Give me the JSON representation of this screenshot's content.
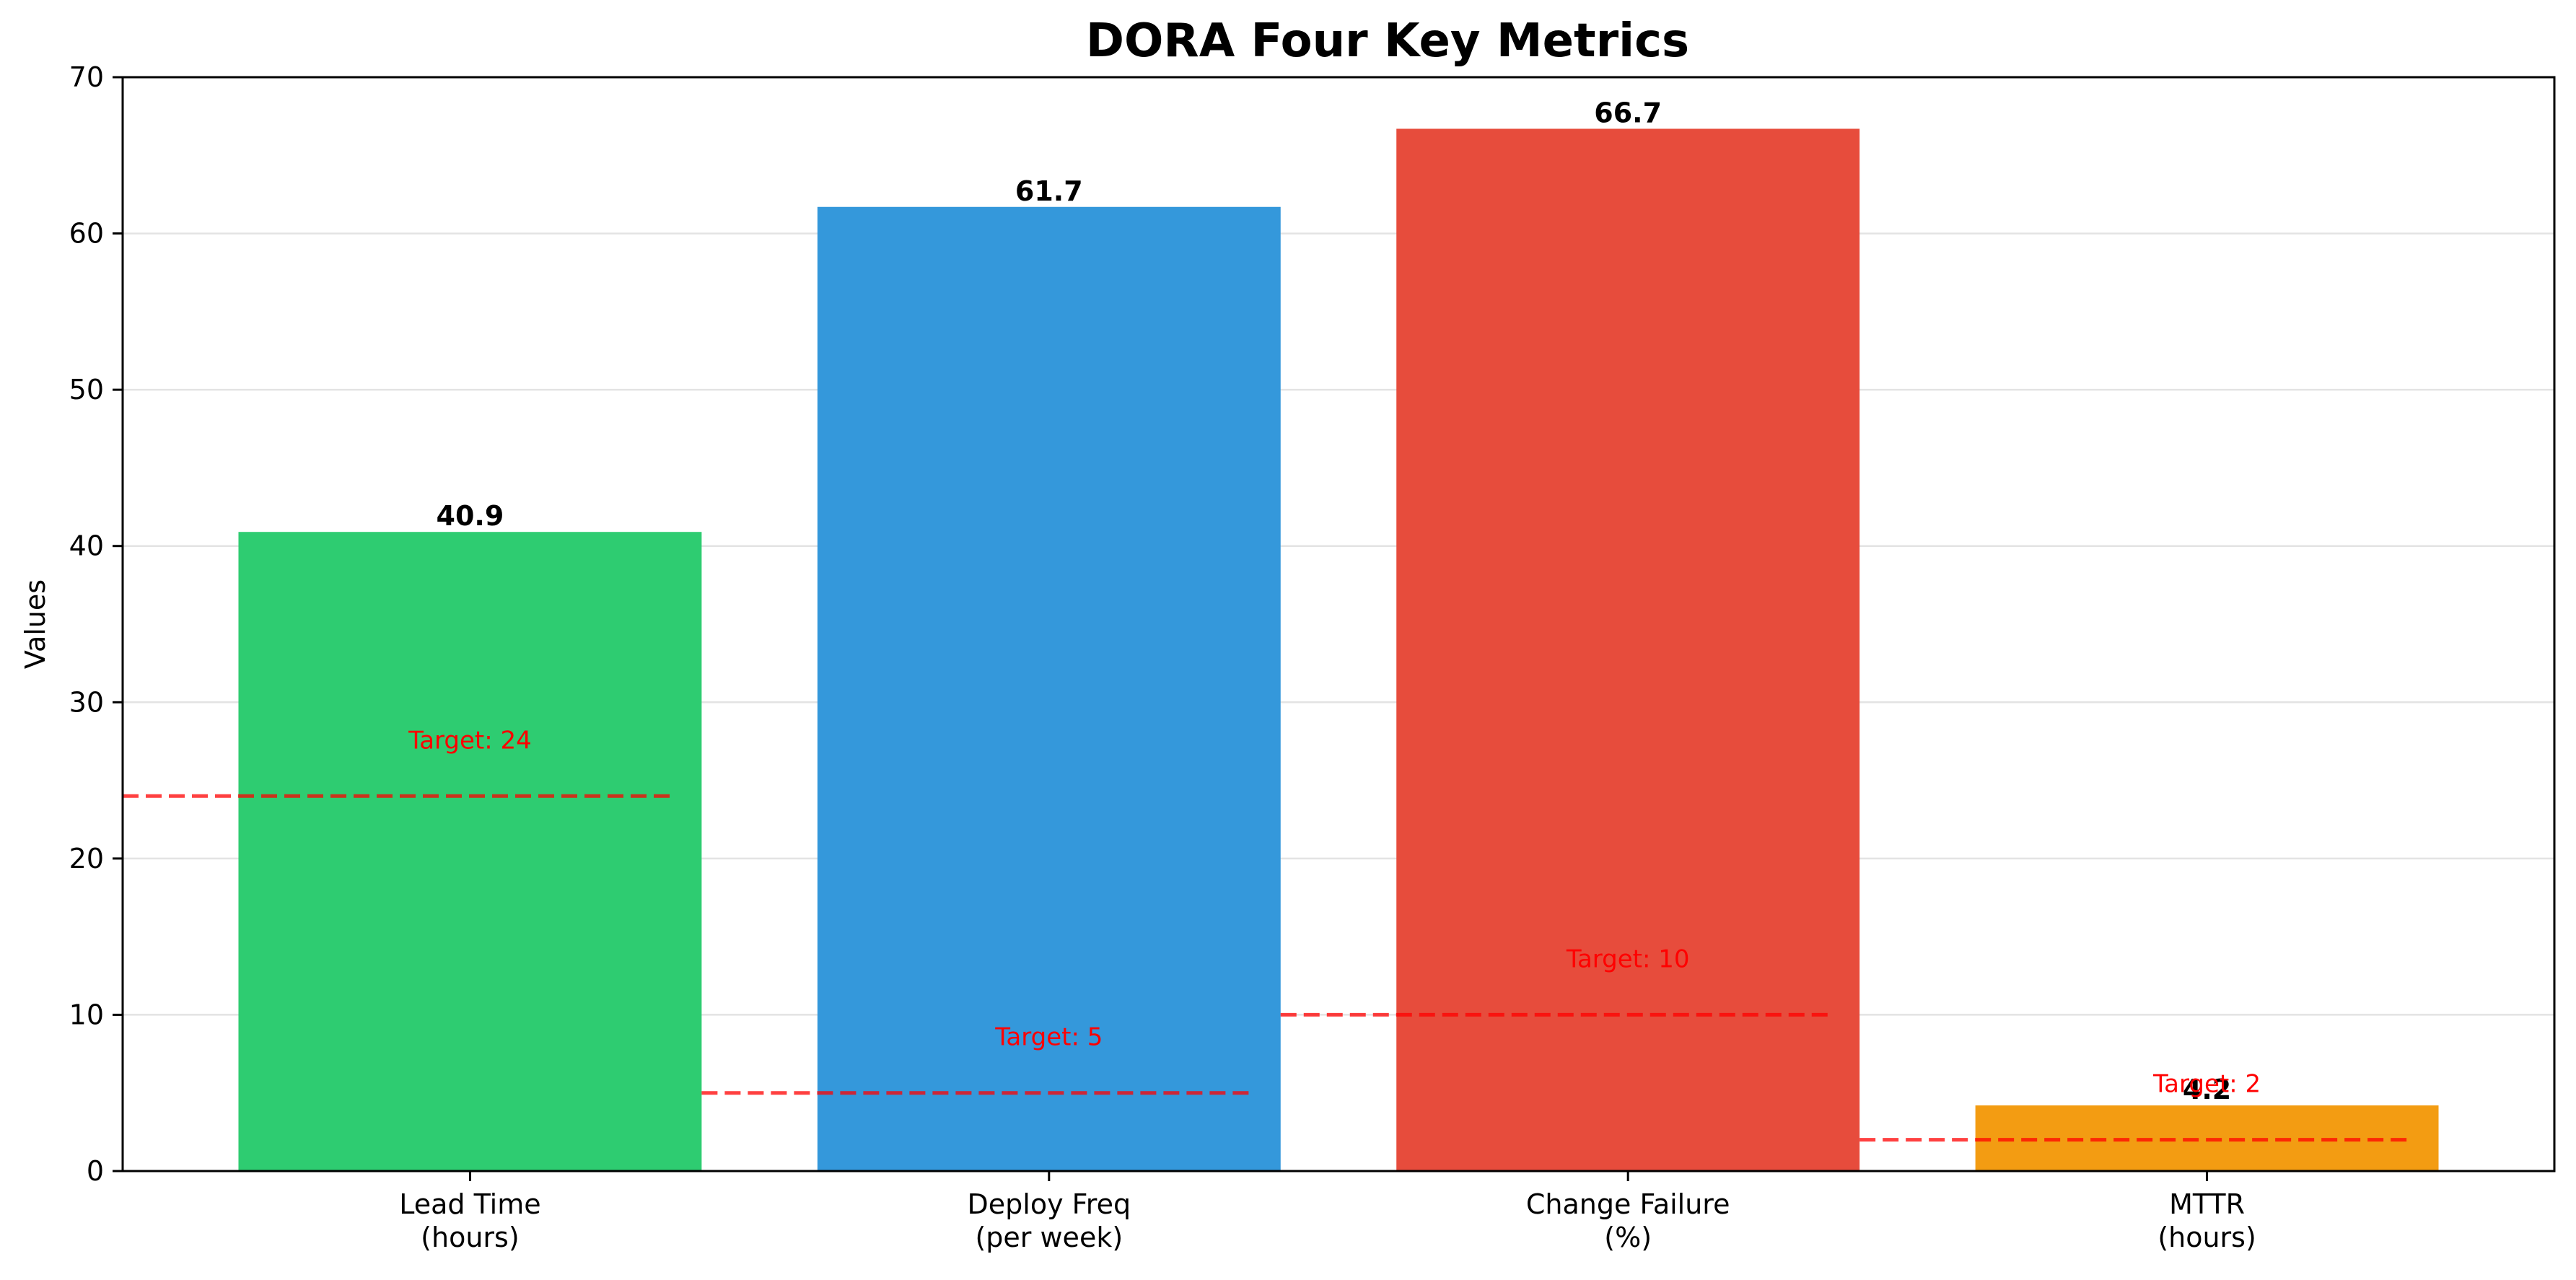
{
  "chart_data": {
    "type": "bar",
    "title": "DORA Four Key Metrics",
    "ylabel": "Values",
    "xlabel": "",
    "ylim": [
      0,
      70
    ],
    "yticks": [
      0,
      10,
      20,
      30,
      40,
      50,
      60,
      70
    ],
    "grid": "horizontal",
    "categories": [
      [
        "Lead Time",
        "(hours)"
      ],
      [
        "Deploy Freq",
        "(per week)"
      ],
      [
        "Change Failure",
        "(%)"
      ],
      [
        "MTTR",
        "(hours)"
      ]
    ],
    "values": [
      40.9,
      61.7,
      66.7,
      4.2
    ],
    "value_labels": [
      "40.9",
      "61.7",
      "66.7",
      "4.2"
    ],
    "colors": [
      "#2ecc71",
      "#3498db",
      "#e74c3c",
      "#f39c12"
    ],
    "targets": [
      {
        "value": 24,
        "label": "Target: 24"
      },
      {
        "value": 5,
        "label": "Target: 5"
      },
      {
        "value": 10,
        "label": "Target: 10"
      },
      {
        "value": 2,
        "label": "Target: 2"
      }
    ],
    "target_line_color": "#ff0000"
  }
}
